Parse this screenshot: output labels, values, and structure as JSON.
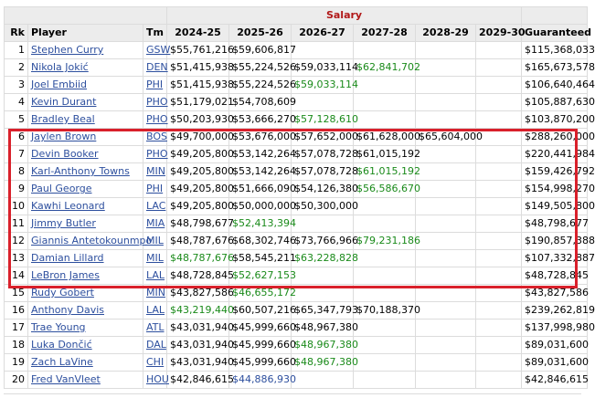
{
  "header": {
    "salary_label": "Salary",
    "columns": {
      "rk": "Rk",
      "player": "Player",
      "tm": "Tm",
      "y1": "2024-25",
      "y2": "2025-26",
      "y3": "2026-27",
      "y4": "2027-28",
      "y5": "2028-29",
      "y6": "2029-30",
      "guaranteed": "Guaranteed"
    }
  },
  "colors": {
    "link": "#2d4f9e",
    "option_green": "#1a8a1a",
    "highlight_red": "#d9202b",
    "salary_header": "#b11919"
  },
  "rows": [
    {
      "rk": "1",
      "player": "Stephen Curry",
      "tm": "GSW",
      "y1": "$55,761,216",
      "y2": "$59,606,817",
      "y3": "",
      "y4": "",
      "y5": "",
      "y6": "",
      "guaranteed": "$115,368,033",
      "y1c": "",
      "y2c": "",
      "y3c": "",
      "y4c": "",
      "y5c": ""
    },
    {
      "rk": "2",
      "player": "Nikola Jokić",
      "tm": "DEN",
      "y1": "$51,415,938",
      "y2": "$55,224,526",
      "y3": "$59,033,114",
      "y4": "$62,841,702",
      "y5": "",
      "y6": "",
      "guaranteed": "$165,673,578",
      "y1c": "",
      "y2c": "",
      "y3c": "",
      "y4c": "green",
      "y5c": ""
    },
    {
      "rk": "3",
      "player": "Joel Embiid",
      "tm": "PHI",
      "y1": "$51,415,938",
      "y2": "$55,224,526",
      "y3": "$59,033,114",
      "y4": "",
      "y5": "",
      "y6": "",
      "guaranteed": "$106,640,464",
      "y1c": "",
      "y2c": "",
      "y3c": "green",
      "y4c": "",
      "y5c": ""
    },
    {
      "rk": "4",
      "player": "Kevin Durant",
      "tm": "PHO",
      "y1": "$51,179,021",
      "y2": "$54,708,609",
      "y3": "",
      "y4": "",
      "y5": "",
      "y6": "",
      "guaranteed": "$105,887,630",
      "y1c": "",
      "y2c": "",
      "y3c": "",
      "y4c": "",
      "y5c": ""
    },
    {
      "rk": "5",
      "player": "Bradley Beal",
      "tm": "PHO",
      "y1": "$50,203,930",
      "y2": "$53,666,270",
      "y3": "$57,128,610",
      "y4": "",
      "y5": "",
      "y6": "",
      "guaranteed": "$103,870,200",
      "y1c": "",
      "y2c": "",
      "y3c": "green",
      "y4c": "",
      "y5c": ""
    },
    {
      "rk": "6",
      "player": "Jaylen Brown",
      "tm": "BOS",
      "y1": "$49,700,000",
      "y2": "$53,676,000",
      "y3": "$57,652,000",
      "y4": "$61,628,000",
      "y5": "$65,604,000",
      "y6": "",
      "guaranteed": "$288,260,000",
      "y1c": "",
      "y2c": "",
      "y3c": "",
      "y4c": "",
      "y5c": ""
    },
    {
      "rk": "7",
      "player": "Devin Booker",
      "tm": "PHO",
      "y1": "$49,205,800",
      "y2": "$53,142,264",
      "y3": "$57,078,728",
      "y4": "$61,015,192",
      "y5": "",
      "y6": "",
      "guaranteed": "$220,441,984",
      "y1c": "",
      "y2c": "",
      "y3c": "",
      "y4c": "",
      "y5c": ""
    },
    {
      "rk": "8",
      "player": "Karl-Anthony Towns",
      "tm": "MIN",
      "y1": "$49,205,800",
      "y2": "$53,142,264",
      "y3": "$57,078,728",
      "y4": "$61,015,192",
      "y5": "",
      "y6": "",
      "guaranteed": "$159,426,792",
      "y1c": "",
      "y2c": "",
      "y3c": "",
      "y4c": "green",
      "y5c": ""
    },
    {
      "rk": "9",
      "player": "Paul George",
      "tm": "PHI",
      "y1": "$49,205,800",
      "y2": "$51,666,090",
      "y3": "$54,126,380",
      "y4": "$56,586,670",
      "y5": "",
      "y6": "",
      "guaranteed": "$154,998,270",
      "y1c": "",
      "y2c": "",
      "y3c": "",
      "y4c": "green",
      "y5c": ""
    },
    {
      "rk": "10",
      "player": "Kawhi Leonard",
      "tm": "LAC",
      "y1": "$49,205,800",
      "y2": "$50,000,000",
      "y3": "$50,300,000",
      "y4": "",
      "y5": "",
      "y6": "",
      "guaranteed": "$149,505,800",
      "y1c": "",
      "y2c": "",
      "y3c": "",
      "y4c": "",
      "y5c": ""
    },
    {
      "rk": "11",
      "player": "Jimmy Butler",
      "tm": "MIA",
      "y1": "$48,798,677",
      "y2": "$52,413,394",
      "y3": "",
      "y4": "",
      "y5": "",
      "y6": "",
      "guaranteed": "$48,798,677",
      "y1c": "",
      "y2c": "green",
      "y3c": "",
      "y4c": "",
      "y5c": ""
    },
    {
      "rk": "12",
      "player": "Giannis Antetokounmpo",
      "tm": "MIL",
      "y1": "$48,787,676",
      "y2": "$68,302,746",
      "y3": "$73,766,966",
      "y4": "$79,231,186",
      "y5": "",
      "y6": "",
      "guaranteed": "$190,857,388",
      "y1c": "",
      "y2c": "",
      "y3c": "",
      "y4c": "green",
      "y5c": ""
    },
    {
      "rk": "13",
      "player": "Damian Lillard",
      "tm": "MIL",
      "y1": "$48,787,676",
      "y2": "$58,545,211",
      "y3": "$63,228,828",
      "y4": "",
      "y5": "",
      "y6": "",
      "guaranteed": "$107,332,887",
      "y1c": "green",
      "y2c": "",
      "y3c": "green",
      "y4c": "",
      "y5c": ""
    },
    {
      "rk": "14",
      "player": "LeBron James",
      "tm": "LAL",
      "y1": "$48,728,845",
      "y2": "$52,627,153",
      "y3": "",
      "y4": "",
      "y5": "",
      "y6": "",
      "guaranteed": "$48,728,845",
      "y1c": "",
      "y2c": "green",
      "y3c": "",
      "y4c": "",
      "y5c": ""
    },
    {
      "rk": "15",
      "player": "Rudy Gobert",
      "tm": "MIN",
      "y1": "$43,827,586",
      "y2": "$46,655,172",
      "y3": "",
      "y4": "",
      "y5": "",
      "y6": "",
      "guaranteed": "$43,827,586",
      "y1c": "",
      "y2c": "green",
      "y3c": "",
      "y4c": "",
      "y5c": ""
    },
    {
      "rk": "16",
      "player": "Anthony Davis",
      "tm": "LAL",
      "y1": "$43,219,440",
      "y2": "$60,507,216",
      "y3": "$65,347,793",
      "y4": "$70,188,370",
      "y5": "",
      "y6": "",
      "guaranteed": "$239,262,819",
      "y1c": "green",
      "y2c": "",
      "y3c": "",
      "y4c": "",
      "y5c": ""
    },
    {
      "rk": "17",
      "player": "Trae Young",
      "tm": "ATL",
      "y1": "$43,031,940",
      "y2": "$45,999,660",
      "y3": "$48,967,380",
      "y4": "",
      "y5": "",
      "y6": "",
      "guaranteed": "$137,998,980",
      "y1c": "",
      "y2c": "",
      "y3c": "",
      "y4c": "",
      "y5c": ""
    },
    {
      "rk": "18",
      "player": "Luka Dončić",
      "tm": "DAL",
      "y1": "$43,031,940",
      "y2": "$45,999,660",
      "y3": "$48,967,380",
      "y4": "",
      "y5": "",
      "y6": "",
      "guaranteed": "$89,031,600",
      "y1c": "",
      "y2c": "",
      "y3c": "green",
      "y4c": "",
      "y5c": ""
    },
    {
      "rk": "19",
      "player": "Zach LaVine",
      "tm": "CHI",
      "y1": "$43,031,940",
      "y2": "$45,999,660",
      "y3": "$48,967,380",
      "y4": "",
      "y5": "",
      "y6": "",
      "guaranteed": "$89,031,600",
      "y1c": "",
      "y2c": "",
      "y3c": "green",
      "y4c": "",
      "y5c": ""
    },
    {
      "rk": "20",
      "player": "Fred VanVleet",
      "tm": "HOU",
      "y1": "$42,846,615",
      "y2": "$44,886,930",
      "y3": "",
      "y4": "",
      "y5": "",
      "y6": "",
      "guaranteed": "$42,846,615",
      "y1c": "",
      "y2c": "blue",
      "y3c": "",
      "y4c": "",
      "y5c": ""
    }
  ]
}
